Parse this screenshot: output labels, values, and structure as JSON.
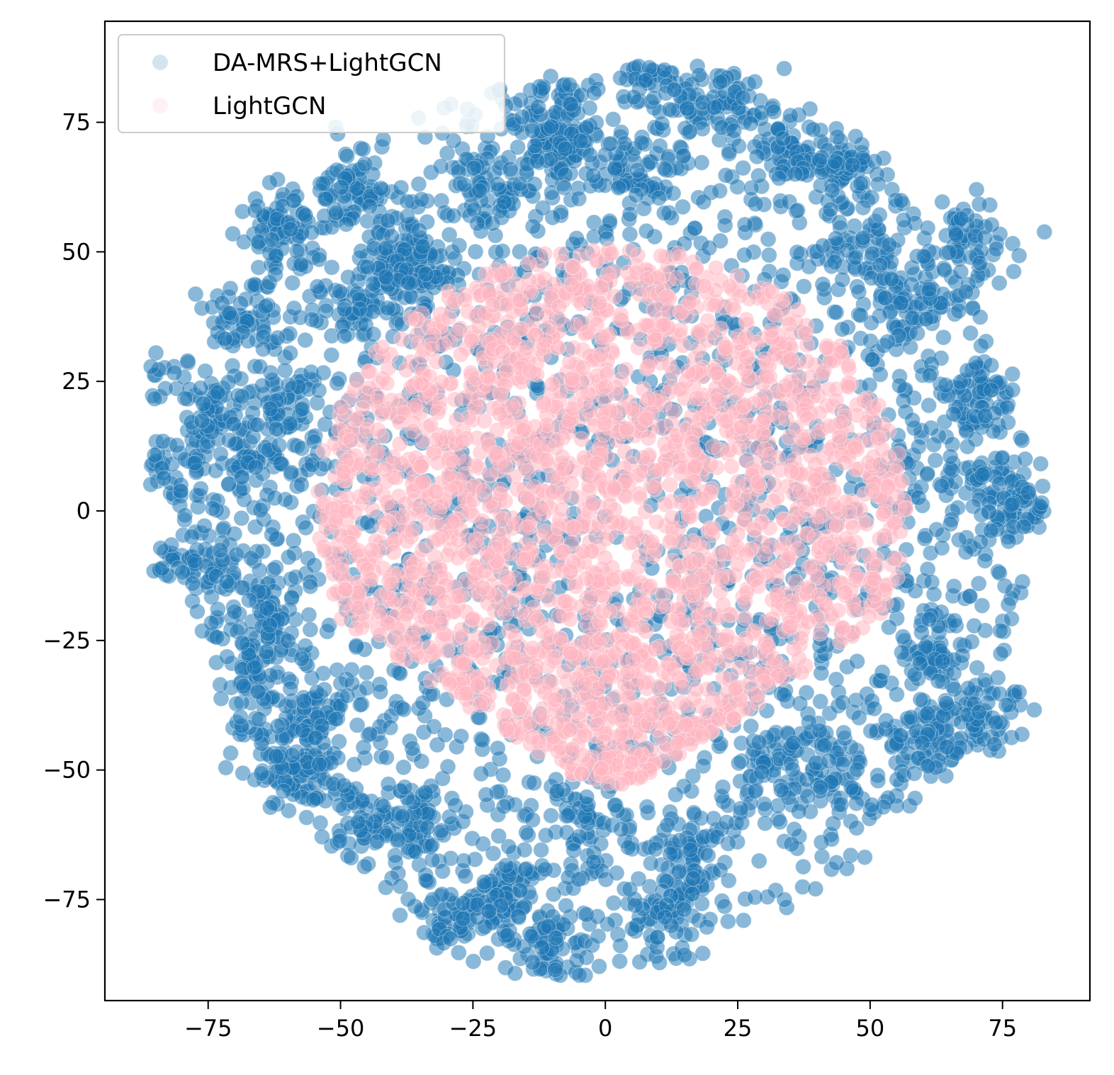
{
  "chart_data": {
    "type": "scatter",
    "title": "",
    "xlabel": "",
    "ylabel": "",
    "xlim": [
      -94.5,
      91.5
    ],
    "ylim": [
      -94.5,
      94.5
    ],
    "xticks": [
      {
        "value": -75,
        "label": "−75"
      },
      {
        "value": -50,
        "label": "−50"
      },
      {
        "value": -25,
        "label": "−25"
      },
      {
        "value": 0,
        "label": "0"
      },
      {
        "value": 25,
        "label": "25"
      },
      {
        "value": 50,
        "label": "50"
      },
      {
        "value": 75,
        "label": "75"
      }
    ],
    "yticks": [
      {
        "value": 75,
        "label": "75"
      },
      {
        "value": 50,
        "label": "50"
      },
      {
        "value": 25,
        "label": "25"
      },
      {
        "value": 0,
        "label": "0"
      },
      {
        "value": -25,
        "label": "−25"
      },
      {
        "value": -50,
        "label": "−50"
      },
      {
        "value": -75,
        "label": "−75"
      }
    ],
    "grid": false,
    "legend_position": "upper-left",
    "series": [
      {
        "name": "DA-MRS+LightGCN",
        "color": "#1f77b4",
        "alpha": 0.2,
        "extent_x": [
          -86,
          83
        ],
        "extent_y": [
          -90,
          86
        ],
        "cluster_centers": [
          [
            -84,
            25
          ],
          [
            -82,
            8
          ],
          [
            -72,
            17
          ],
          [
            -68,
            38
          ],
          [
            -66,
            10
          ],
          [
            -63,
            -20
          ],
          [
            -62,
            55
          ],
          [
            -60,
            20
          ],
          [
            -55,
            -40
          ],
          [
            -58,
            -50
          ],
          [
            -48,
            62
          ],
          [
            -45,
            40
          ],
          [
            -40,
            45
          ],
          [
            -35,
            48
          ],
          [
            -22,
            62
          ],
          [
            -10,
            70
          ],
          [
            5,
            65
          ],
          [
            10,
            84
          ],
          [
            22,
            80
          ],
          [
            -8,
            76
          ],
          [
            35,
            70
          ],
          [
            45,
            66
          ],
          [
            48,
            50
          ],
          [
            58,
            40
          ],
          [
            68,
            52
          ],
          [
            70,
            22
          ],
          [
            72,
            5
          ],
          [
            80,
            0
          ],
          [
            62,
            -28
          ],
          [
            72,
            -40
          ],
          [
            60,
            -45
          ],
          [
            42,
            -50
          ],
          [
            30,
            -48
          ],
          [
            15,
            -68
          ],
          [
            10,
            -80
          ],
          [
            -10,
            -85
          ],
          [
            -20,
            -75
          ],
          [
            -30,
            -80
          ],
          [
            -5,
            -60
          ],
          [
            -35,
            -60
          ],
          [
            -45,
            -60
          ],
          [
            -62,
            -45
          ],
          [
            -78,
            -10
          ],
          [
            -66,
            -30
          ]
        ]
      },
      {
        "name": "LightGCN",
        "color": "#ffb6c1",
        "alpha": 0.2,
        "extent_x": [
          -55,
          57
        ],
        "extent_y": [
          -53,
          51
        ]
      }
    ]
  }
}
